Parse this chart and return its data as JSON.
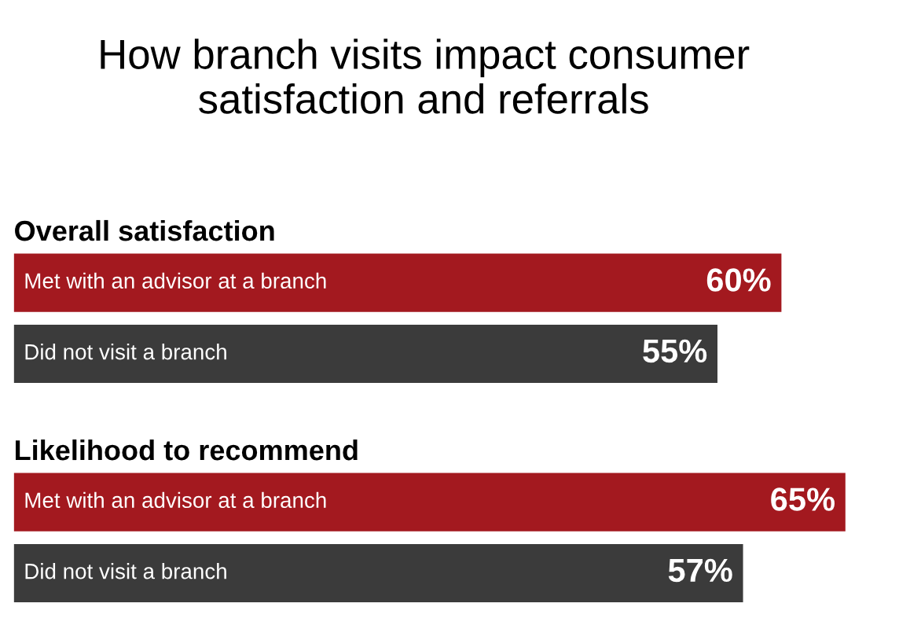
{
  "chart_data": [
    {
      "type": "bar",
      "orientation": "horizontal",
      "title": "How branch visits impact consumer satisfaction and referrals",
      "subtitle": "Overall satisfaction",
      "categories": [
        "Met with an advisor at a branch",
        "Did not visit a branch"
      ],
      "values": [
        60,
        55
      ],
      "value_labels": [
        "60%",
        "55%"
      ],
      "colors": [
        "#a3191f",
        "#3b3b3b"
      ],
      "tick_labels": false
    },
    {
      "type": "bar",
      "orientation": "horizontal",
      "subtitle": "Likelihood to recommend",
      "categories": [
        "Met with an advisor at a branch",
        "Did not visit a branch"
      ],
      "values": [
        65,
        57
      ],
      "value_labels": [
        "65%",
        "57%"
      ],
      "colors": [
        "#a3191f",
        "#3b3b3b"
      ],
      "tick_labels": false
    }
  ]
}
